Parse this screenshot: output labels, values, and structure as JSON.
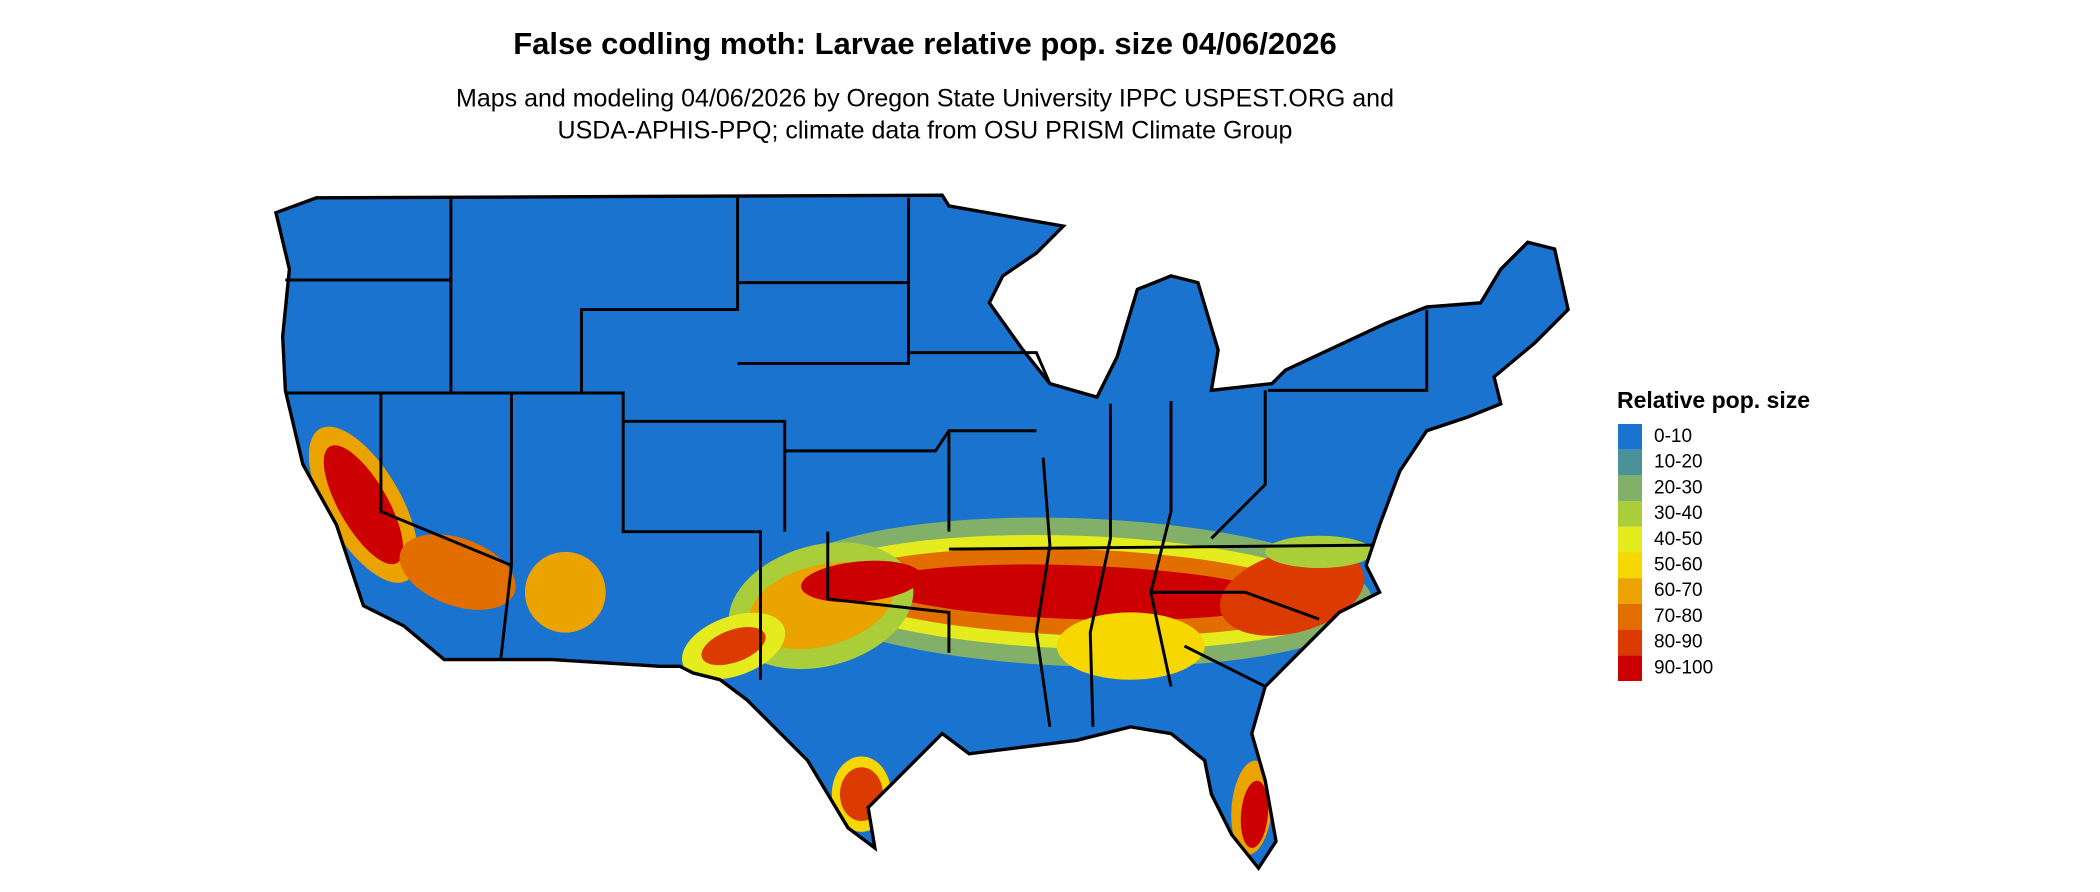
{
  "title": "False codling moth: Larvae relative pop. size 04/06/2026",
  "subtitle": [
    "Maps and modeling 04/06/2026 by Oregon State University IPPC USPEST.ORG and",
    "USDA-APHIS-PPQ; climate data from OSU PRISM Climate Group"
  ],
  "legend": {
    "title": "Relative pop. size",
    "items": [
      {
        "label": "0-10",
        "color": "#1a73cf"
      },
      {
        "label": "10-20",
        "color": "#4a9199"
      },
      {
        "label": "20-30",
        "color": "#82b068"
      },
      {
        "label": "30-40",
        "color": "#aacd3a"
      },
      {
        "label": "40-50",
        "color": "#e4ec1e"
      },
      {
        "label": "50-60",
        "color": "#f6d700"
      },
      {
        "label": "60-70",
        "color": "#eba300"
      },
      {
        "label": "70-80",
        "color": "#e26e00"
      },
      {
        "label": "80-90",
        "color": "#db3b00"
      },
      {
        "label": "90-100",
        "color": "#cc0000"
      }
    ]
  }
}
